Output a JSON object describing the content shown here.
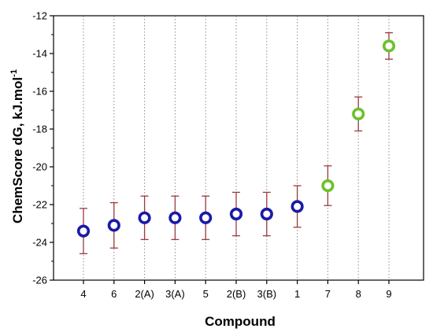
{
  "chart_data": {
    "type": "scatter",
    "title": "",
    "xlabel": "Compound",
    "ylabel": "ChemScore dG, kJ.mol",
    "ylabel_superscript": "-1",
    "categories": [
      "4",
      "6",
      "2(A)",
      "3(A)",
      "5",
      "2(B)",
      "3(B)",
      "1",
      "7",
      "8",
      "9"
    ],
    "values": [
      -23.4,
      -23.1,
      -22.7,
      -22.7,
      -22.7,
      -22.5,
      -22.5,
      -22.1,
      -21.0,
      -17.2,
      -13.6
    ],
    "error": [
      1.2,
      1.2,
      1.15,
      1.15,
      1.15,
      1.15,
      1.15,
      1.1,
      1.05,
      0.9,
      0.7
    ],
    "marker_colors": [
      "#1a1aa8",
      "#1a1aa8",
      "#1a1aa8",
      "#1a1aa8",
      "#1a1aa8",
      "#1a1aa8",
      "#1a1aa8",
      "#1a1aa8",
      "#6cc22b",
      "#6cc22b",
      "#6cc22b"
    ],
    "errorbar_color": "#9b3b3b",
    "ylim": [
      -26,
      -12
    ],
    "yticks": [
      -26,
      -24,
      -22,
      -20,
      -18,
      -16,
      -14,
      -12
    ],
    "grid": "vertical dotted",
    "legend": "none"
  }
}
